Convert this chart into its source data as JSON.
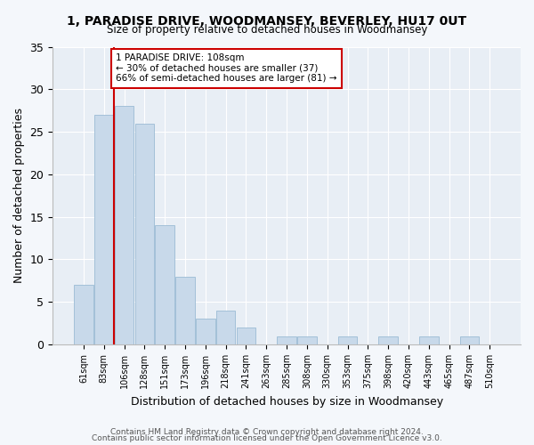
{
  "title": "1, PARADISE DRIVE, WOODMANSEY, BEVERLEY, HU17 0UT",
  "subtitle": "Size of property relative to detached houses in Woodmansey",
  "xlabel": "Distribution of detached houses by size in Woodmansey",
  "ylabel": "Number of detached properties",
  "bin_labels": [
    "61sqm",
    "83sqm",
    "106sqm",
    "128sqm",
    "151sqm",
    "173sqm",
    "196sqm",
    "218sqm",
    "241sqm",
    "263sqm",
    "285sqm",
    "308sqm",
    "330sqm",
    "353sqm",
    "375sqm",
    "398sqm",
    "420sqm",
    "443sqm",
    "465sqm",
    "487sqm",
    "510sqm"
  ],
  "bar_values": [
    7,
    27,
    28,
    26,
    14,
    8,
    3,
    4,
    2,
    0,
    1,
    1,
    0,
    1,
    0,
    1,
    0,
    1,
    0,
    1,
    0
  ],
  "bar_color": "#c8d9ea",
  "bar_edgecolor": "#9bbbd4",
  "annotation_text": "1 PARADISE DRIVE: 108sqm\n← 30% of detached houses are smaller (37)\n66% of semi-detached houses are larger (81) →",
  "annotation_box_color": "#ffffff",
  "annotation_box_edgecolor": "#cc0000",
  "vline_color": "#cc0000",
  "ylim": [
    0,
    35
  ],
  "yticks": [
    0,
    5,
    10,
    15,
    20,
    25,
    30,
    35
  ],
  "footer1": "Contains HM Land Registry data © Crown copyright and database right 2024.",
  "footer2": "Contains public sector information licensed under the Open Government Licence v3.0.",
  "bg_color": "#f4f7fb",
  "plot_bg_color": "#e8eef5"
}
